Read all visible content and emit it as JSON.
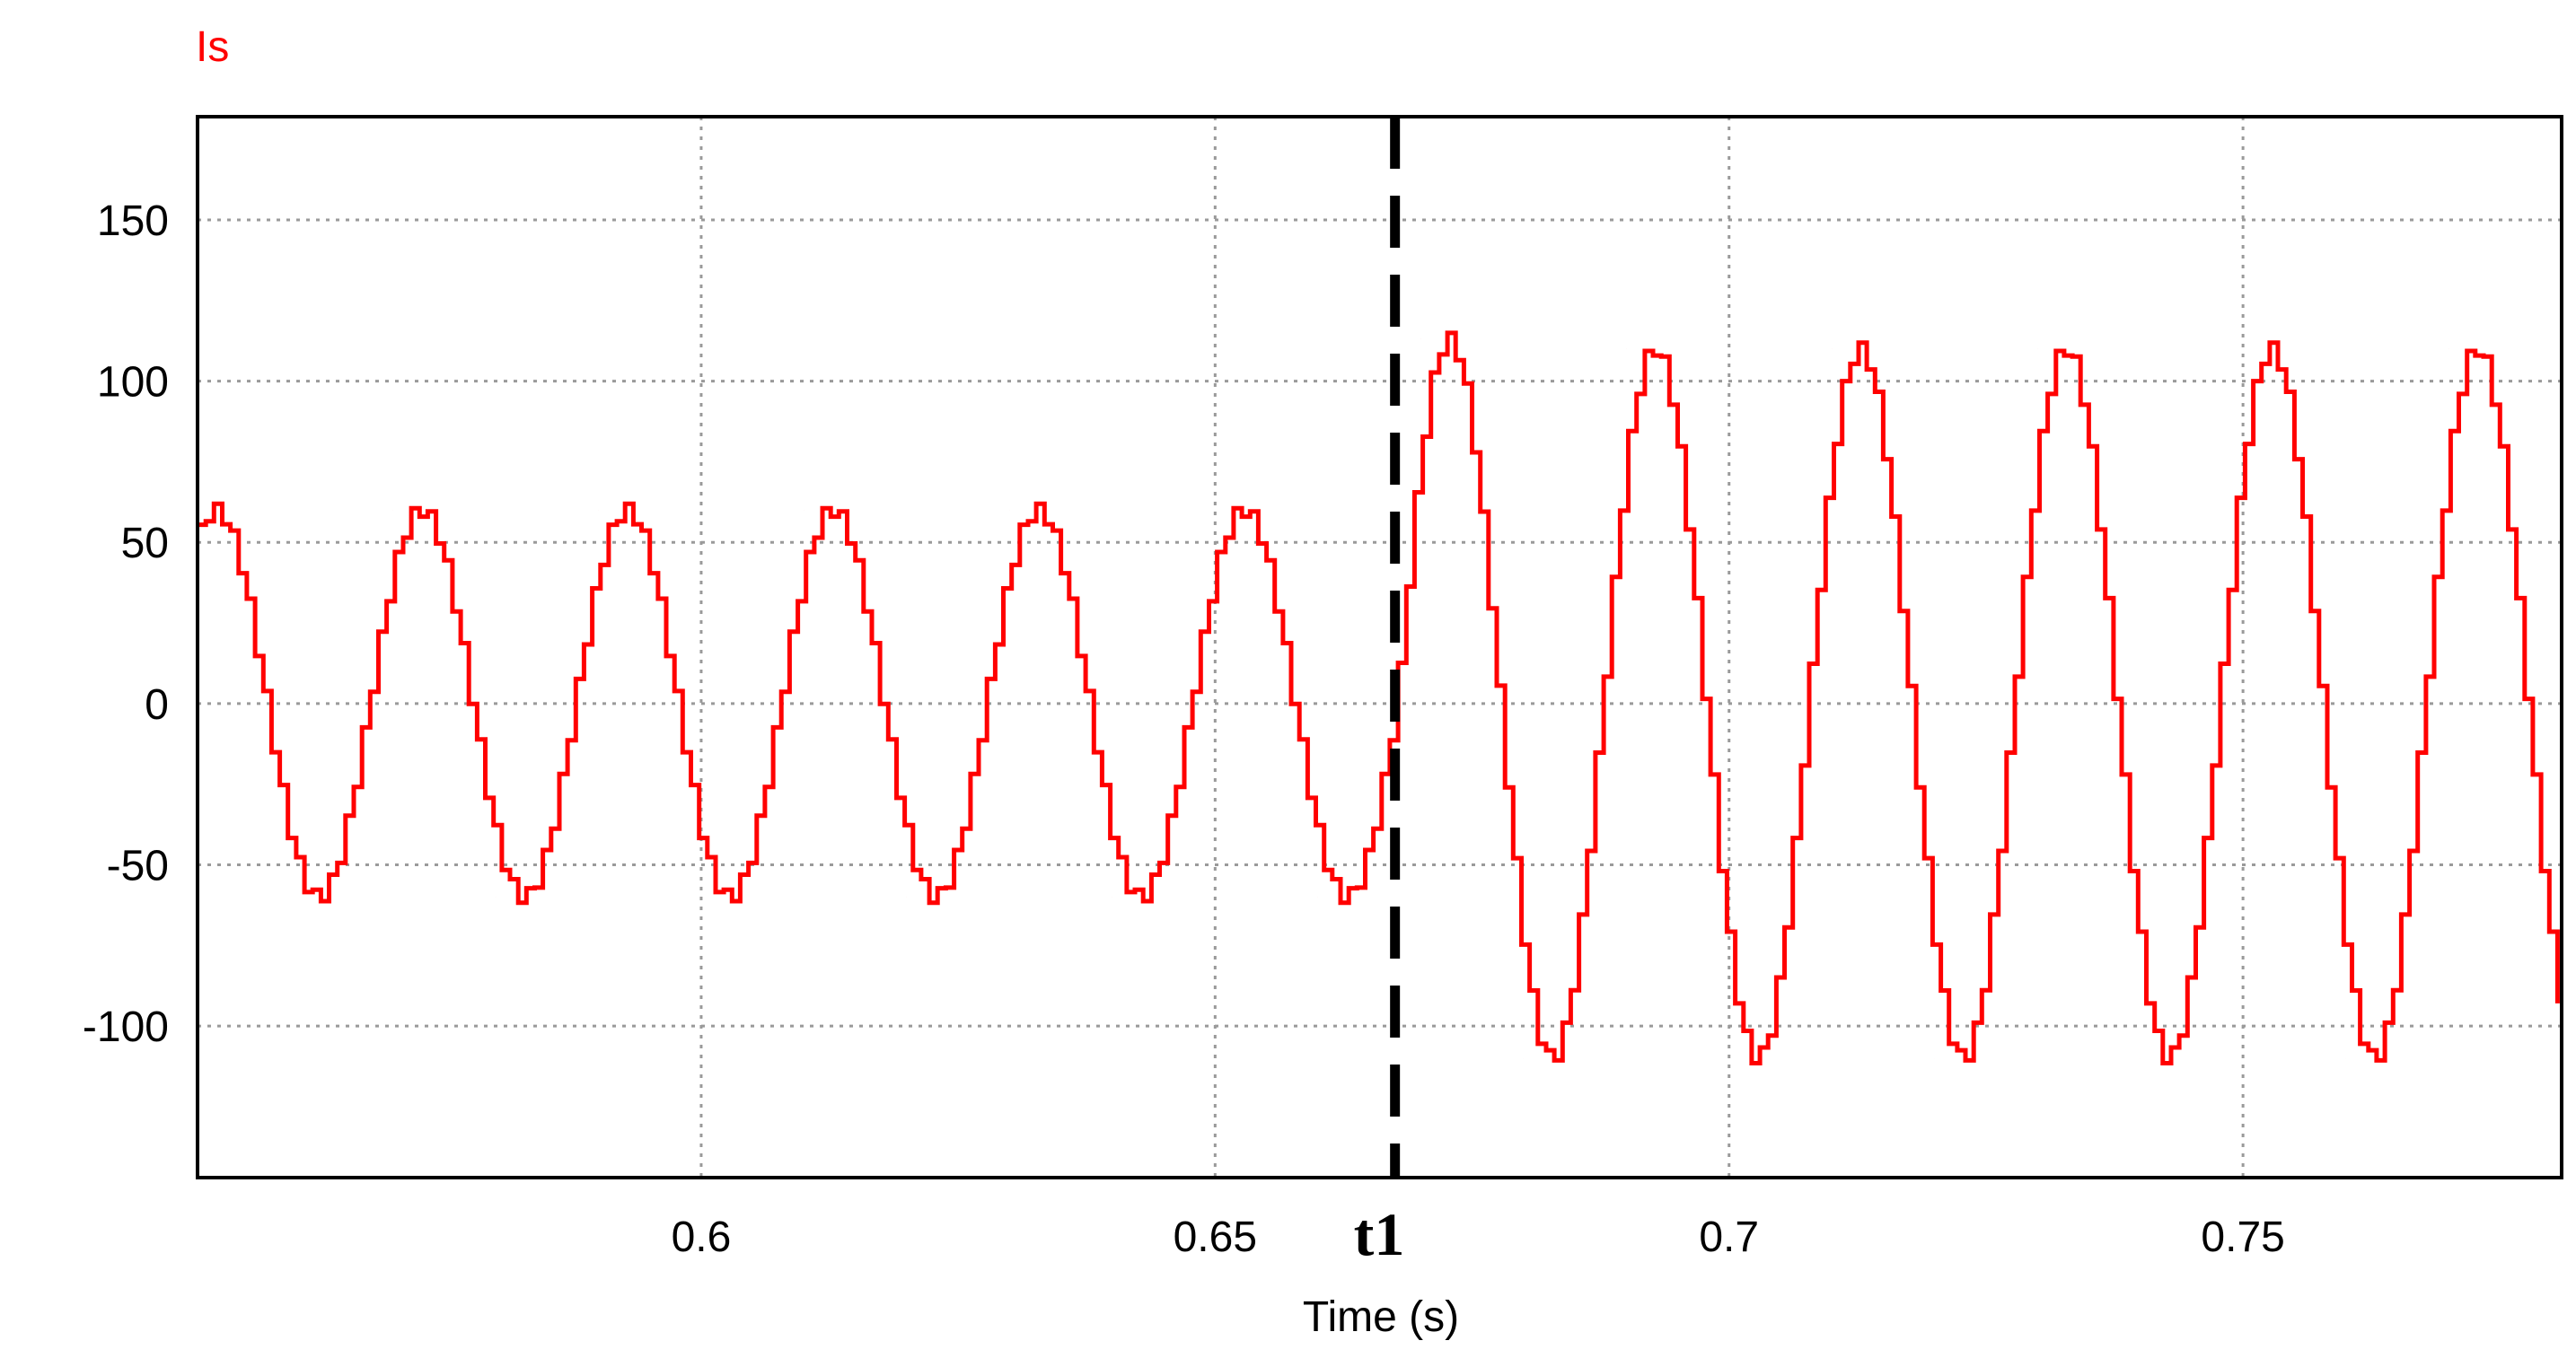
{
  "chart_data": {
    "type": "line",
    "title": "",
    "series_label": "Is",
    "xlabel": "Time (s)",
    "ylabel": "",
    "xlim": [
      0.551,
      0.781
    ],
    "ylim": [
      -147,
      182
    ],
    "x_ticks": [
      {
        "value": 0.6,
        "label": "0.6"
      },
      {
        "value": 0.65,
        "label": "0.65"
      },
      {
        "value": 0.7,
        "label": "0.7"
      },
      {
        "value": 0.75,
        "label": "0.75"
      }
    ],
    "y_ticks": [
      {
        "value": 150,
        "label": "150"
      },
      {
        "value": 100,
        "label": "100"
      },
      {
        "value": 50,
        "label": "50"
      },
      {
        "value": 0,
        "label": "0"
      },
      {
        "value": -50,
        "label": "-50"
      },
      {
        "value": -100,
        "label": "-100"
      }
    ],
    "grid": true,
    "marker": {
      "label": "t1",
      "x": 0.6675,
      "style": "dashed",
      "color": "#000000"
    },
    "series": [
      {
        "name": "Is",
        "color": "#ff0000",
        "frequency_hz": 50,
        "phase_zero_time_s": 0.6675,
        "amplitude_before": 60,
        "amplitude_after": 110,
        "peak_after_first": 113,
        "step_s": 0.0008,
        "ripple": 2,
        "peaks": [
          {
            "x": 0.57,
            "y": 60
          },
          {
            "x": 0.58,
            "y": -60
          },
          {
            "x": 0.59,
            "y": 60
          },
          {
            "x": 0.6,
            "y": -60
          },
          {
            "x": 0.61,
            "y": 60
          },
          {
            "x": 0.62,
            "y": -60
          },
          {
            "x": 0.63,
            "y": 60
          },
          {
            "x": 0.64,
            "y": -60
          },
          {
            "x": 0.65,
            "y": 60
          },
          {
            "x": 0.66,
            "y": -60
          },
          {
            "x": 0.67,
            "y": 113
          },
          {
            "x": 0.68,
            "y": -110
          },
          {
            "x": 0.69,
            "y": 110
          },
          {
            "x": 0.7,
            "y": -110
          },
          {
            "x": 0.71,
            "y": 110
          },
          {
            "x": 0.72,
            "y": -110
          },
          {
            "x": 0.73,
            "y": 110
          },
          {
            "x": 0.74,
            "y": -110
          },
          {
            "x": 0.75,
            "y": 110
          },
          {
            "x": 0.76,
            "y": -110
          },
          {
            "x": 0.77,
            "y": 110
          },
          {
            "x": 0.78,
            "y": -110
          }
        ]
      }
    ]
  }
}
